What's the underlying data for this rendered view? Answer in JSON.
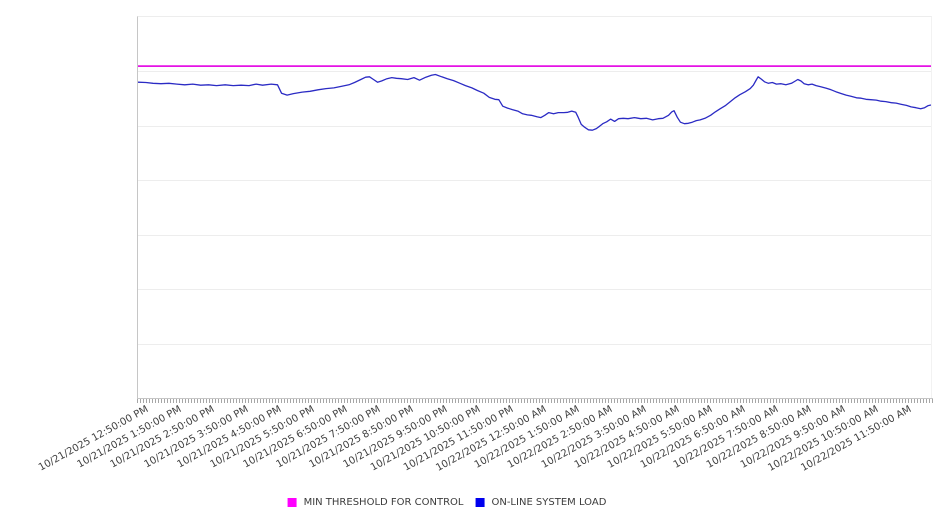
{
  "chart_data": {
    "type": "line",
    "title": "",
    "x_tick_labels": [
      "10/21/2025 12:50:00 PM",
      "10/21/2025 1:50:00 PM",
      "10/21/2025 2:50:00 PM",
      "10/21/2025 3:50:00 PM",
      "10/21/2025 4:50:00 PM",
      "10/21/2025 5:50:00 PM",
      "10/21/2025 6:50:00 PM",
      "10/21/2025 7:50:00 PM",
      "10/21/2025 8:50:00 PM",
      "10/21/2025 9:50:00 PM",
      "10/21/2025 10:50:00 PM",
      "10/21/2025 11:50:00 PM",
      "10/22/2025 12:50:00 AM",
      "10/22/2025 1:50:00 AM",
      "10/22/2025 2:50:00 AM",
      "10/22/2025 3:50:00 AM",
      "10/22/2025 4:50:00 AM",
      "10/22/2025 5:50:00 AM",
      "10/22/2025 6:50:00 AM",
      "10/22/2025 7:50:00 AM",
      "10/22/2025 8:50:00 AM",
      "10/22/2025 9:50:00 AM",
      "10/22/2025 10:50:00 AM",
      "10/22/2025 11:50:00 AM"
    ],
    "y_axis": {
      "tick_labels_visible": false,
      "scale": "normalized percent of plot height (no labels shown on screen)",
      "ylim": [
        0,
        100
      ],
      "gridline_count": 6
    },
    "legend_position": "bottom-center",
    "series": [
      {
        "name": "MIN THRESHOLD FOR CONTROL",
        "style": "horizontal-threshold",
        "value": 87.1,
        "line_color": "#e512e5",
        "swatch_color": "#ff00ff"
      },
      {
        "name": "ON-LINE SYSTEM LOAD",
        "style": "line",
        "line_color": "#2b2bc4",
        "swatch_color": "#0000ee",
        "points": [
          [
            0,
            82.9
          ],
          [
            1,
            82.8
          ],
          [
            1.9,
            82.6
          ],
          [
            2.9,
            82.5
          ],
          [
            3.9,
            82.6
          ],
          [
            4.9,
            82.4
          ],
          [
            5.9,
            82.2
          ],
          [
            6.9,
            82.4
          ],
          [
            7.9,
            82.1
          ],
          [
            8.9,
            82.2
          ],
          [
            9.9,
            82
          ],
          [
            11,
            82.2
          ],
          [
            12,
            82
          ],
          [
            13,
            82.1
          ],
          [
            14,
            82
          ],
          [
            14.9,
            82.4
          ],
          [
            15.7,
            82.1
          ],
          [
            16.8,
            82.4
          ],
          [
            17.6,
            82.2
          ],
          [
            18.1,
            80
          ],
          [
            18.8,
            79.5
          ],
          [
            19.6,
            79.9
          ],
          [
            20.7,
            80.3
          ],
          [
            21.7,
            80.5
          ],
          [
            22.7,
            80.9
          ],
          [
            23.7,
            81.2
          ],
          [
            24.7,
            81.4
          ],
          [
            25.7,
            81.8
          ],
          [
            26.6,
            82.2
          ],
          [
            27.3,
            82.8
          ],
          [
            28.1,
            83.6
          ],
          [
            28.7,
            84.2
          ],
          [
            29.2,
            84.3
          ],
          [
            29.7,
            83.6
          ],
          [
            30.2,
            82.9
          ],
          [
            30.7,
            83.2
          ],
          [
            31.4,
            83.8
          ],
          [
            32,
            84.1
          ],
          [
            32.6,
            83.9
          ],
          [
            33.2,
            83.8
          ],
          [
            34,
            83.6
          ],
          [
            34.8,
            84.1
          ],
          [
            35.5,
            83.4
          ],
          [
            36.3,
            84.2
          ],
          [
            37,
            84.7
          ],
          [
            37.5,
            84.9
          ],
          [
            38.3,
            84.3
          ],
          [
            39,
            83.8
          ],
          [
            39.8,
            83.3
          ],
          [
            40.6,
            82.6
          ],
          [
            41.3,
            82
          ],
          [
            42.1,
            81.4
          ],
          [
            42.8,
            80.7
          ],
          [
            43.6,
            80
          ],
          [
            44.3,
            78.9
          ],
          [
            45,
            78.4
          ],
          [
            45.5,
            78.3
          ],
          [
            46,
            76.6
          ],
          [
            46.6,
            76.1
          ],
          [
            47.2,
            75.7
          ],
          [
            47.9,
            75.3
          ],
          [
            48.5,
            74.6
          ],
          [
            49.1,
            74.3
          ],
          [
            49.6,
            74.2
          ],
          [
            50.3,
            73.8
          ],
          [
            50.8,
            73.6
          ],
          [
            51.3,
            74.2
          ],
          [
            51.8,
            74.9
          ],
          [
            52.4,
            74.6
          ],
          [
            53,
            74.9
          ],
          [
            53.7,
            74.9
          ],
          [
            54.2,
            75
          ],
          [
            54.7,
            75.3
          ],
          [
            55.2,
            75
          ],
          [
            55.5,
            73.7
          ],
          [
            55.9,
            71.8
          ],
          [
            56.3,
            71.1
          ],
          [
            56.8,
            70.4
          ],
          [
            57.3,
            70.3
          ],
          [
            57.8,
            70.7
          ],
          [
            58.2,
            71.3
          ],
          [
            58.6,
            72
          ],
          [
            59.1,
            72.5
          ],
          [
            59.6,
            73.2
          ],
          [
            60.1,
            72.6
          ],
          [
            60.6,
            73.3
          ],
          [
            61.2,
            73.4
          ],
          [
            61.8,
            73.3
          ],
          [
            62.6,
            73.6
          ],
          [
            63.4,
            73.3
          ],
          [
            64.1,
            73.4
          ],
          [
            64.9,
            73
          ],
          [
            65.6,
            73.3
          ],
          [
            66.2,
            73.4
          ],
          [
            66.9,
            74.2
          ],
          [
            67.3,
            75.1
          ],
          [
            67.6,
            75.4
          ],
          [
            68,
            73.7
          ],
          [
            68.4,
            72.4
          ],
          [
            68.9,
            72
          ],
          [
            69.4,
            72.1
          ],
          [
            69.9,
            72.4
          ],
          [
            70.4,
            72.8
          ],
          [
            70.9,
            73
          ],
          [
            71.5,
            73.4
          ],
          [
            72.2,
            74.2
          ],
          [
            72.8,
            75.1
          ],
          [
            73.4,
            75.9
          ],
          [
            74.1,
            76.8
          ],
          [
            74.7,
            77.8
          ],
          [
            75.3,
            78.8
          ],
          [
            75.9,
            79.6
          ],
          [
            76.6,
            80.4
          ],
          [
            77.2,
            81.2
          ],
          [
            77.6,
            82.1
          ],
          [
            78,
            83.6
          ],
          [
            78.2,
            84.3
          ],
          [
            78.6,
            83.7
          ],
          [
            79,
            83
          ],
          [
            79.5,
            82.6
          ],
          [
            80,
            82.8
          ],
          [
            80.5,
            82.4
          ],
          [
            81.1,
            82.5
          ],
          [
            81.7,
            82.2
          ],
          [
            82.4,
            82.6
          ],
          [
            82.9,
            83.2
          ],
          [
            83.2,
            83.6
          ],
          [
            83.6,
            83.2
          ],
          [
            84,
            82.5
          ],
          [
            84.5,
            82.2
          ],
          [
            85,
            82.4
          ],
          [
            85.5,
            82
          ],
          [
            86.1,
            81.7
          ],
          [
            86.8,
            81.3
          ],
          [
            87.4,
            80.9
          ],
          [
            88,
            80.4
          ],
          [
            88.7,
            79.9
          ],
          [
            89.3,
            79.5
          ],
          [
            89.9,
            79.2
          ],
          [
            90.6,
            78.8
          ],
          [
            91.2,
            78.7
          ],
          [
            91.8,
            78.4
          ],
          [
            92.4,
            78.3
          ],
          [
            93.1,
            78.2
          ],
          [
            93.7,
            77.9
          ],
          [
            94.3,
            77.8
          ],
          [
            95,
            77.5
          ],
          [
            95.6,
            77.4
          ],
          [
            96.2,
            77.1
          ],
          [
            96.9,
            76.8
          ],
          [
            97.5,
            76.4
          ],
          [
            98.1,
            76.2
          ],
          [
            98.7,
            75.9
          ],
          [
            99.2,
            76.2
          ],
          [
            99.6,
            76.7
          ],
          [
            100,
            76.9
          ]
        ]
      }
    ]
  }
}
